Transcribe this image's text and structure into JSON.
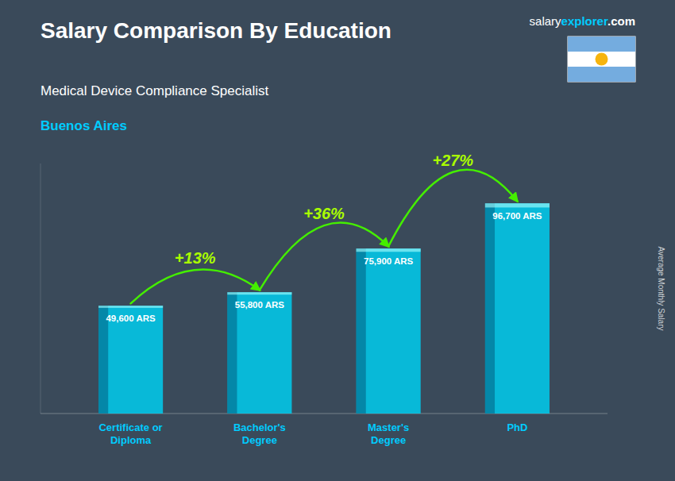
{
  "chart_data": {
    "type": "bar",
    "title": "Salary Comparison By Education",
    "subtitle": [
      "Medical Device Compliance Specialist",
      "Buenos Aires"
    ],
    "ylabel": "Average Monthly Salary",
    "categories": [
      "Certificate or\nDiploma",
      "Bachelor's\nDegree",
      "Master's\nDegree",
      "PhD"
    ],
    "values": [
      49600,
      55800,
      75900,
      96700
    ],
    "value_labels": [
      "49,600 ARS",
      "55,800 ARS",
      "75,900 ARS",
      "96,700 ARS"
    ],
    "data_labels": true,
    "color": "#00ccee",
    "ylim": [
      0,
      115000
    ],
    "tick_labels": "x",
    "grid": false,
    "annotations": [
      {
        "text": "+13%",
        "from": 0,
        "to": 1
      },
      {
        "text": "+36%",
        "from": 1,
        "to": 2
      },
      {
        "text": "+27%",
        "from": 2,
        "to": 3
      },
      {
        "parts": [
          "salary",
          "explorer",
          ".com"
        ]
      }
    ]
  }
}
